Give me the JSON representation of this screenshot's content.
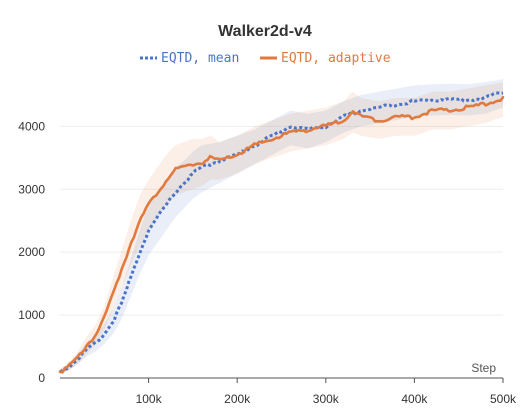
{
  "chart_data": {
    "type": "line",
    "title": "Walker2d-v4",
    "xlabel": "Step",
    "ylabel": "",
    "xlim": [
      0,
      500000
    ],
    "ylim": [
      0,
      4800
    ],
    "grid": true,
    "legend_position": "top-center",
    "x_ticks": [
      100000,
      200000,
      300000,
      400000,
      500000
    ],
    "x_tick_labels": [
      "100k",
      "200k",
      "300k",
      "400k",
      "500k"
    ],
    "y_ticks": [
      0,
      1000,
      2000,
      3000,
      4000
    ],
    "y_tick_labels": [
      "0",
      "1000",
      "2000",
      "3000",
      "4000"
    ],
    "series": [
      {
        "name": "EQTD, mean",
        "color": "#4a74c9",
        "line_style": "dotted",
        "x": [
          0,
          10000,
          20000,
          30000,
          40000,
          50000,
          60000,
          70000,
          80000,
          90000,
          100000,
          110000,
          120000,
          130000,
          140000,
          150000,
          160000,
          180000,
          200000,
          220000,
          240000,
          260000,
          280000,
          300000,
          320000,
          340000,
          360000,
          380000,
          400000,
          420000,
          440000,
          460000,
          480000,
          500000
        ],
        "y": [
          100,
          180,
          300,
          450,
          550,
          700,
          900,
          1200,
          1600,
          2000,
          2350,
          2550,
          2750,
          2950,
          3100,
          3250,
          3350,
          3450,
          3550,
          3700,
          3850,
          4000,
          3950,
          4000,
          4150,
          4250,
          4300,
          4350,
          4400,
          4420,
          4430,
          4420,
          4450,
          4550
        ],
        "band_low": [
          60,
          120,
          220,
          340,
          420,
          540,
          700,
          950,
          1300,
          1650,
          1950,
          2150,
          2350,
          2550,
          2700,
          2850,
          2950,
          3100,
          3250,
          3400,
          3550,
          3700,
          3650,
          3750,
          3900,
          4000,
          4050,
          4100,
          4150,
          4170,
          4180,
          4170,
          4200,
          4300
        ],
        "band_high": [
          140,
          240,
          380,
          560,
          680,
          860,
          1100,
          1450,
          1900,
          2350,
          2750,
          2950,
          3150,
          3350,
          3450,
          3600,
          3700,
          3750,
          3850,
          3950,
          4100,
          4250,
          4200,
          4250,
          4400,
          4500,
          4550,
          4600,
          4650,
          4670,
          4680,
          4670,
          4700,
          4750
        ]
      },
      {
        "name": "EQTD, adaptive",
        "color": "#e07a3f",
        "line_style": "solid",
        "x": [
          0,
          10000,
          20000,
          30000,
          40000,
          50000,
          60000,
          70000,
          80000,
          90000,
          100000,
          110000,
          120000,
          130000,
          140000,
          150000,
          160000,
          170000,
          180000,
          200000,
          220000,
          240000,
          260000,
          280000,
          300000,
          320000,
          330000,
          340000,
          360000,
          380000,
          400000,
          420000,
          440000,
          460000,
          480000,
          500000
        ],
        "y": [
          100,
          180,
          320,
          520,
          680,
          950,
          1350,
          1750,
          2150,
          2500,
          2750,
          2950,
          3150,
          3300,
          3350,
          3400,
          3420,
          3500,
          3450,
          3550,
          3700,
          3800,
          3900,
          3950,
          4000,
          4100,
          4250,
          4150,
          4100,
          4150,
          4150,
          4250,
          4250,
          4300,
          4350,
          4450
        ],
        "band_low": [
          60,
          120,
          220,
          380,
          520,
          760,
          1100,
          1450,
          1800,
          2100,
          2350,
          2550,
          2750,
          2900,
          2950,
          3000,
          3050,
          3150,
          3150,
          3250,
          3400,
          3500,
          3600,
          3650,
          3700,
          3800,
          3900,
          3850,
          3800,
          3850,
          3850,
          3950,
          3950,
          4000,
          4050,
          4150
        ],
        "band_high": [
          140,
          240,
          420,
          660,
          840,
          1140,
          1600,
          2050,
          2500,
          2900,
          3150,
          3350,
          3550,
          3700,
          3750,
          3800,
          3800,
          3850,
          3750,
          3850,
          4000,
          4100,
          4200,
          4250,
          4300,
          4400,
          4550,
          4450,
          4400,
          4450,
          4450,
          4550,
          4550,
          4600,
          4650,
          4700
        ]
      }
    ]
  }
}
